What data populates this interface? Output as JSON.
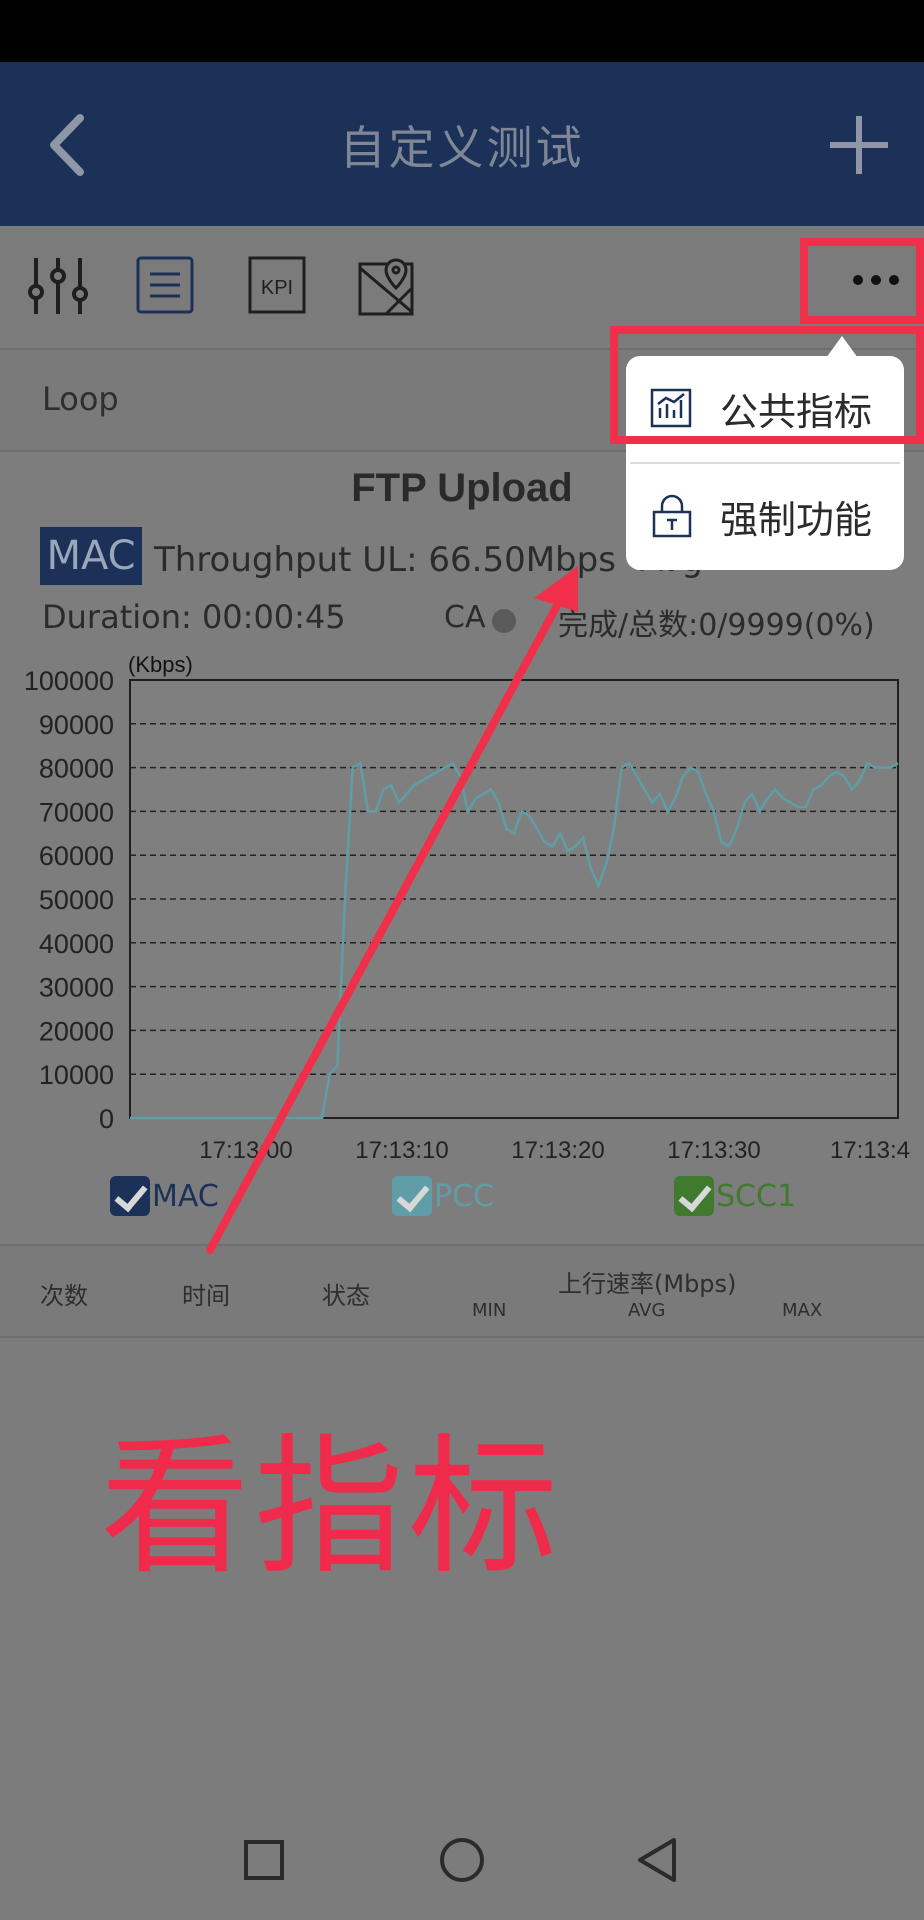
{
  "app_title": "自定义测试",
  "icons": {
    "back": "chevron-left-icon",
    "add": "plus-icon",
    "sliders": "sliders-icon",
    "list": "list-icon",
    "kpi": "kpi-icon",
    "map": "map-pin-icon",
    "more": "more-horizontal-icon"
  },
  "toolbar": {
    "kpi_label": "KPI"
  },
  "loop_label": "Loop",
  "test": {
    "title": "FTP Upload",
    "badge": "MAC",
    "throughput": "Throughput UL: 66.50Mbps",
    "avg_partial": "Avg",
    "duration": "Duration: 00:00:45",
    "ca_label": "CA",
    "progress": "完成/总数:0/9999(0%)"
  },
  "chart_data": {
    "type": "line",
    "unit_label": "(Kbps)",
    "ylim": [
      0,
      100000
    ],
    "y_ticks": [
      "100000",
      "90000",
      "80000",
      "70000",
      "60000",
      "50000",
      "40000",
      "30000",
      "20000",
      "10000",
      "0"
    ],
    "x_ticks": [
      "17:13:00",
      "17:13:10",
      "17:13:20",
      "17:13:30",
      "17:13:4"
    ],
    "grid": "dashed",
    "series": [
      {
        "name": "PCC",
        "color": "#5f9ea6",
        "x": [
          0.0,
          0.2,
          0.25,
          0.26,
          0.27,
          0.28,
          0.29,
          0.3,
          0.31,
          0.32,
          0.33,
          0.34,
          0.35,
          0.36,
          0.37,
          0.38,
          0.39,
          0.4,
          0.41,
          0.42,
          0.43,
          0.44,
          0.45,
          0.46,
          0.47,
          0.48,
          0.49,
          0.5,
          0.51,
          0.52,
          0.53,
          0.54,
          0.55,
          0.56,
          0.57,
          0.58,
          0.59,
          0.6,
          0.61,
          0.62,
          0.63,
          0.64,
          0.65,
          0.66,
          0.67,
          0.68,
          0.69,
          0.7,
          0.71,
          0.72,
          0.73,
          0.74,
          0.75,
          0.76,
          0.77,
          0.78,
          0.79,
          0.8,
          0.81,
          0.82,
          0.83,
          0.84,
          0.85,
          0.86,
          0.87,
          0.88,
          0.89,
          0.9,
          0.91,
          0.92,
          0.93,
          0.94,
          0.95,
          0.96,
          0.97,
          0.98,
          0.99,
          1.0
        ],
        "values": [
          0,
          0,
          0,
          10000,
          12000,
          50000,
          80000,
          81000,
          70000,
          70000,
          75000,
          76000,
          72000,
          74000,
          76000,
          77000,
          78000,
          79000,
          80000,
          81000,
          78000,
          70000,
          73000,
          74000,
          75000,
          72000,
          66000,
          65000,
          70000,
          69000,
          66000,
          63000,
          62000,
          65000,
          61000,
          62000,
          64000,
          57000,
          53000,
          58000,
          66000,
          80000,
          81000,
          78000,
          75000,
          72000,
          74000,
          70000,
          73000,
          78000,
          80000,
          79000,
          74000,
          70000,
          63000,
          62000,
          66000,
          72000,
          74000,
          70000,
          73000,
          75000,
          73000,
          72000,
          71000,
          71000,
          75000,
          76000,
          78000,
          79000,
          78000,
          75000,
          77000,
          81000,
          80000,
          80000,
          80000,
          81000
        ]
      }
    ]
  },
  "legend": [
    {
      "label": "MAC",
      "color": "#1b3158"
    },
    {
      "label": "PCC",
      "color": "#5f9ea6"
    },
    {
      "label": "SCC1",
      "color": "#3f7a2f"
    }
  ],
  "table": {
    "col_count": "次数",
    "col_time": "时间",
    "col_state": "状态",
    "col_rate": "上行速率(Mbps)",
    "sub_min": "MIN",
    "sub_avg": "AVG",
    "sub_max": "MAX"
  },
  "popup": {
    "item1": "公共指标",
    "item1_icon": "chart-icon",
    "item2": "强制功能",
    "item2_icon": "lock-icon"
  },
  "annotation": {
    "text": "看指标",
    "color": "#f0304a"
  },
  "navbar_icons": [
    "square-icon",
    "circle-icon",
    "back-triangle-icon"
  ]
}
